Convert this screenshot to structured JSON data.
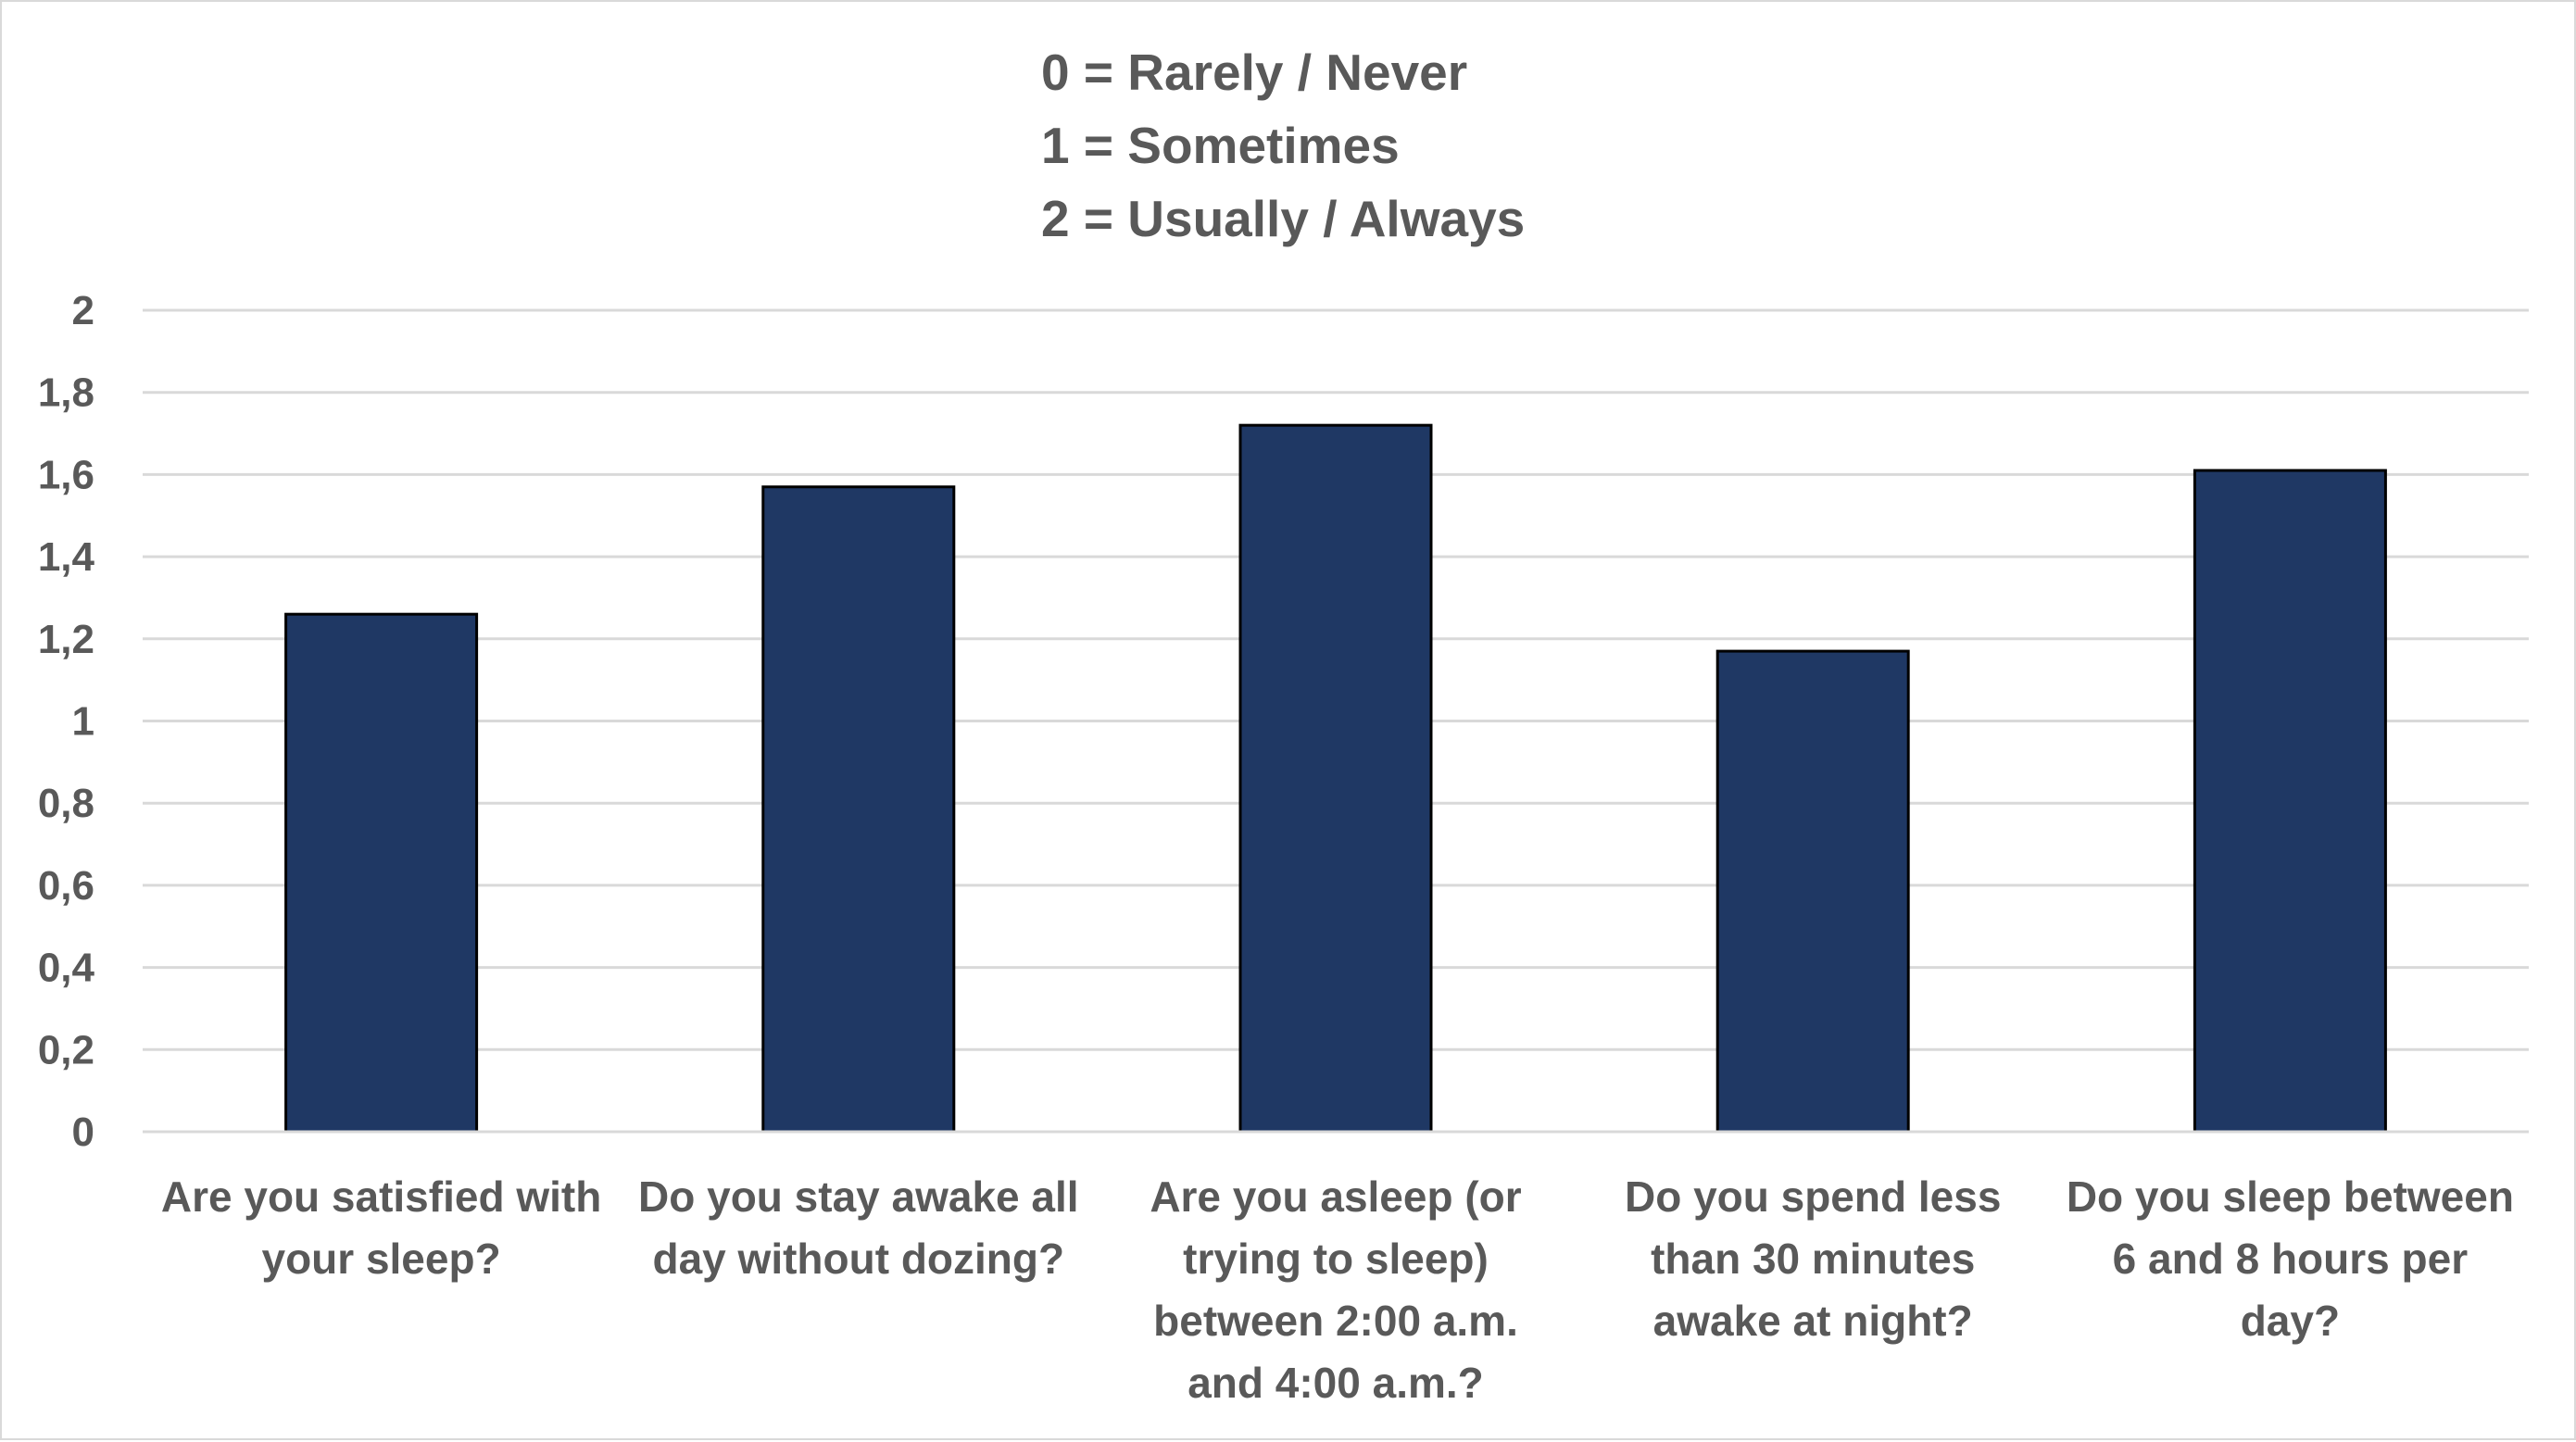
{
  "chart_data": {
    "type": "bar",
    "title": "",
    "xlabel": "",
    "ylabel": "",
    "legend_note": [
      "0 = Rarely / Never",
      "1 = Sometimes",
      "2 = Usually / Always"
    ],
    "categories": [
      [
        "Are you satisfied with",
        "your sleep?"
      ],
      [
        "Do you stay awake all",
        "day without dozing?"
      ],
      [
        "Are you asleep (or",
        "trying to sleep)",
        "between 2:00 a.m.",
        "and 4:00 a.m.?"
      ],
      [
        "Do you spend less",
        "than 30 minutes",
        "awake at night?"
      ],
      [
        "Do you sleep between",
        "6 and 8 hours per",
        "day?"
      ]
    ],
    "values": [
      1.26,
      1.57,
      1.72,
      1.17,
      1.61
    ],
    "ylim": [
      0,
      2
    ],
    "yticks": [
      "0",
      "0,2",
      "0,4",
      "0,6",
      "0,8",
      "1",
      "1,2",
      "1,4",
      "1,6",
      "1,8",
      "2"
    ],
    "grid": true,
    "bar_color": "#1f3864"
  }
}
